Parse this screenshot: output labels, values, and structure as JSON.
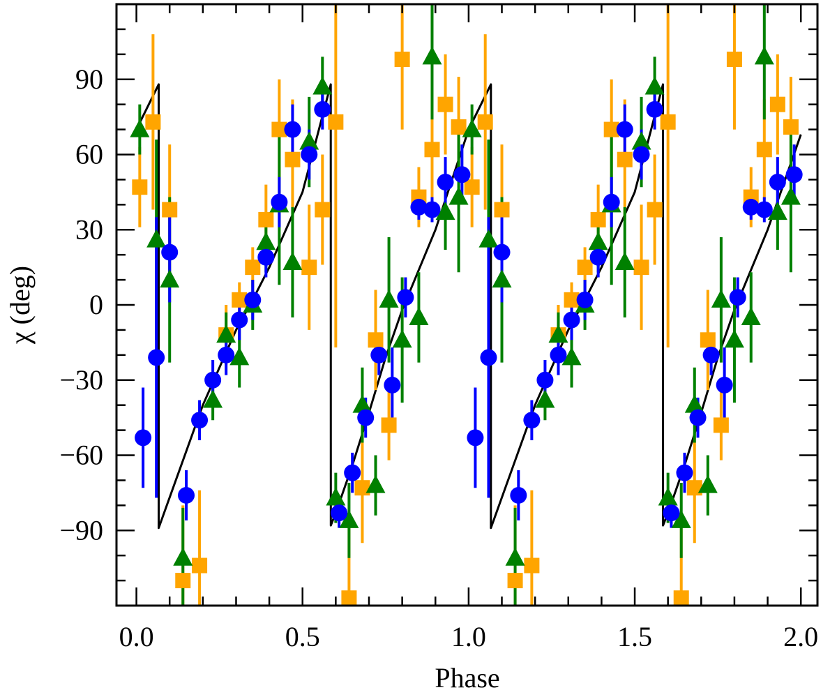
{
  "chart_data": {
    "type": "scatter",
    "xlabel": "Phase",
    "ylabel": "χ (deg)",
    "xlim": [
      -0.06,
      2.05
    ],
    "ylim": [
      -120,
      120
    ],
    "xticks": [
      0.0,
      0.5,
      1.0,
      1.5,
      2.0
    ],
    "xtick_labels": [
      "0.0",
      "0.5",
      "1.0",
      "1.5",
      "2.0"
    ],
    "yticks": [
      -90,
      -60,
      -30,
      0,
      30,
      60,
      90
    ],
    "ytick_labels": [
      "−90",
      "−60",
      "−30",
      "0",
      "30",
      "60",
      "90"
    ],
    "grid": false,
    "legend": "none",
    "model": {
      "color": "#000000",
      "x": [
        0.0,
        0.067,
        0.0671,
        0.2,
        0.3,
        0.35,
        0.4,
        0.5,
        0.585,
        0.5851,
        0.6,
        0.65,
        0.7,
        0.75,
        0.8,
        0.9,
        1.0,
        1.067,
        1.0671,
        1.2,
        1.3,
        1.35,
        1.4,
        1.5,
        1.585,
        1.5851,
        1.6,
        1.65,
        1.7,
        1.75,
        1.8,
        1.9,
        2.0
      ],
      "y": [
        70,
        88,
        -89,
        -40,
        -10,
        2,
        15,
        45,
        88,
        -88,
        -83,
        -64,
        -43,
        -21,
        -2,
        30,
        70,
        88,
        -89,
        -40,
        -10,
        2,
        15,
        45,
        88,
        -88,
        -83,
        -64,
        -43,
        -21,
        -2,
        30,
        68
      ]
    },
    "series": [
      {
        "marker": "square",
        "color": "#FFA500",
        "x": [
          0.01,
          0.05,
          0.1,
          0.14,
          0.19,
          0.27,
          0.31,
          0.35,
          0.39,
          0.43,
          0.47,
          0.52,
          0.56,
          0.6,
          0.64,
          0.68,
          0.72,
          0.76,
          0.8,
          0.85,
          0.89,
          0.93,
          0.97,
          1.01,
          1.05,
          1.1,
          1.14,
          1.19,
          1.27,
          1.31,
          1.35,
          1.39,
          1.43,
          1.47,
          1.52,
          1.56,
          1.6,
          1.64,
          1.68,
          1.72,
          1.76,
          1.8,
          1.85,
          1.89,
          1.93,
          1.97
        ],
        "y": [
          47,
          73,
          38,
          -110,
          -104,
          -12,
          2,
          15,
          34,
          70,
          58,
          15,
          38,
          73,
          -117,
          -73,
          -14,
          -48,
          98,
          43,
          62,
          80,
          71,
          47,
          73,
          38,
          -110,
          -104,
          -12,
          2,
          15,
          34,
          70,
          58,
          15,
          38,
          73,
          -117,
          -73,
          -14,
          -48,
          98,
          43,
          62,
          80,
          71
        ],
        "yerr": [
          16,
          35,
          26,
          30,
          30,
          12,
          7,
          8,
          14,
          20,
          24,
          25,
          22,
          90,
          30,
          22,
          20,
          14,
          28,
          12,
          20,
          20,
          20,
          16,
          35,
          26,
          30,
          30,
          12,
          7,
          8,
          14,
          20,
          24,
          25,
          22,
          90,
          30,
          22,
          20,
          14,
          28,
          12,
          20,
          20,
          20
        ]
      },
      {
        "marker": "triangle",
        "color": "#008000",
        "x": [
          0.01,
          0.06,
          0.1,
          0.14,
          0.23,
          0.27,
          0.31,
          0.35,
          0.39,
          0.43,
          0.47,
          0.52,
          0.56,
          0.6,
          0.64,
          0.68,
          0.72,
          0.76,
          0.8,
          0.85,
          0.89,
          0.93,
          0.97,
          1.01,
          1.06,
          1.1,
          1.14,
          1.23,
          1.27,
          1.31,
          1.35,
          1.39,
          1.43,
          1.47,
          1.52,
          1.56,
          1.6,
          1.64,
          1.68,
          1.72,
          1.76,
          1.8,
          1.85,
          1.89,
          1.93,
          1.97
        ],
        "y": [
          70,
          26,
          10,
          -101,
          -38,
          -12,
          -21,
          0,
          25,
          40,
          17,
          65,
          87,
          -77,
          -86,
          -40,
          -72,
          2,
          -14,
          -5,
          99,
          37,
          43,
          70,
          26,
          10,
          -101,
          -38,
          -12,
          -21,
          0,
          25,
          40,
          17,
          65,
          87,
          -77,
          -86,
          -40,
          -72,
          2,
          -14,
          -5,
          99,
          37,
          43
        ],
        "yerr": [
          10,
          40,
          33,
          20,
          8,
          9,
          12,
          10,
          12,
          32,
          22,
          18,
          12,
          10,
          15,
          15,
          12,
          25,
          25,
          18,
          25,
          15,
          30,
          10,
          40,
          33,
          20,
          8,
          9,
          12,
          10,
          12,
          32,
          22,
          18,
          12,
          10,
          15,
          15,
          12,
          25,
          25,
          18,
          25,
          15,
          30
        ]
      },
      {
        "marker": "circle",
        "color": "#0000FF",
        "x": [
          0.02,
          0.06,
          0.1,
          0.15,
          0.19,
          0.23,
          0.27,
          0.31,
          0.35,
          0.39,
          0.43,
          0.47,
          0.52,
          0.56,
          0.61,
          0.65,
          0.69,
          0.73,
          0.77,
          0.81,
          0.85,
          0.89,
          0.93,
          0.98,
          1.02,
          1.06,
          1.1,
          1.15,
          1.19,
          1.23,
          1.27,
          1.31,
          1.35,
          1.39,
          1.43,
          1.47,
          1.52,
          1.56,
          1.61,
          1.65,
          1.69,
          1.73,
          1.77,
          1.81,
          1.85,
          1.89,
          1.93,
          1.98
        ],
        "y": [
          -53,
          -21,
          21,
          -76,
          -46,
          -30,
          -20,
          -6,
          2,
          19,
          41,
          70,
          60,
          78,
          -83,
          -67,
          -45,
          -20,
          -32,
          3,
          39,
          38,
          49,
          52,
          -53,
          -21,
          21,
          -76,
          -46,
          -30,
          -20,
          -6,
          2,
          19,
          41,
          70,
          60,
          78,
          -83,
          -67,
          -45,
          -20,
          -32,
          3,
          39,
          38,
          49,
          52
        ],
        "yerr": [
          20,
          56,
          20,
          10,
          8,
          8,
          8,
          8,
          8,
          8,
          10,
          10,
          10,
          8,
          6,
          8,
          8,
          8,
          15,
          8,
          5,
          5,
          10,
          12,
          20,
          56,
          20,
          10,
          8,
          8,
          8,
          8,
          8,
          8,
          10,
          10,
          10,
          8,
          6,
          8,
          8,
          8,
          15,
          8,
          5,
          5,
          10,
          12
        ]
      }
    ]
  }
}
